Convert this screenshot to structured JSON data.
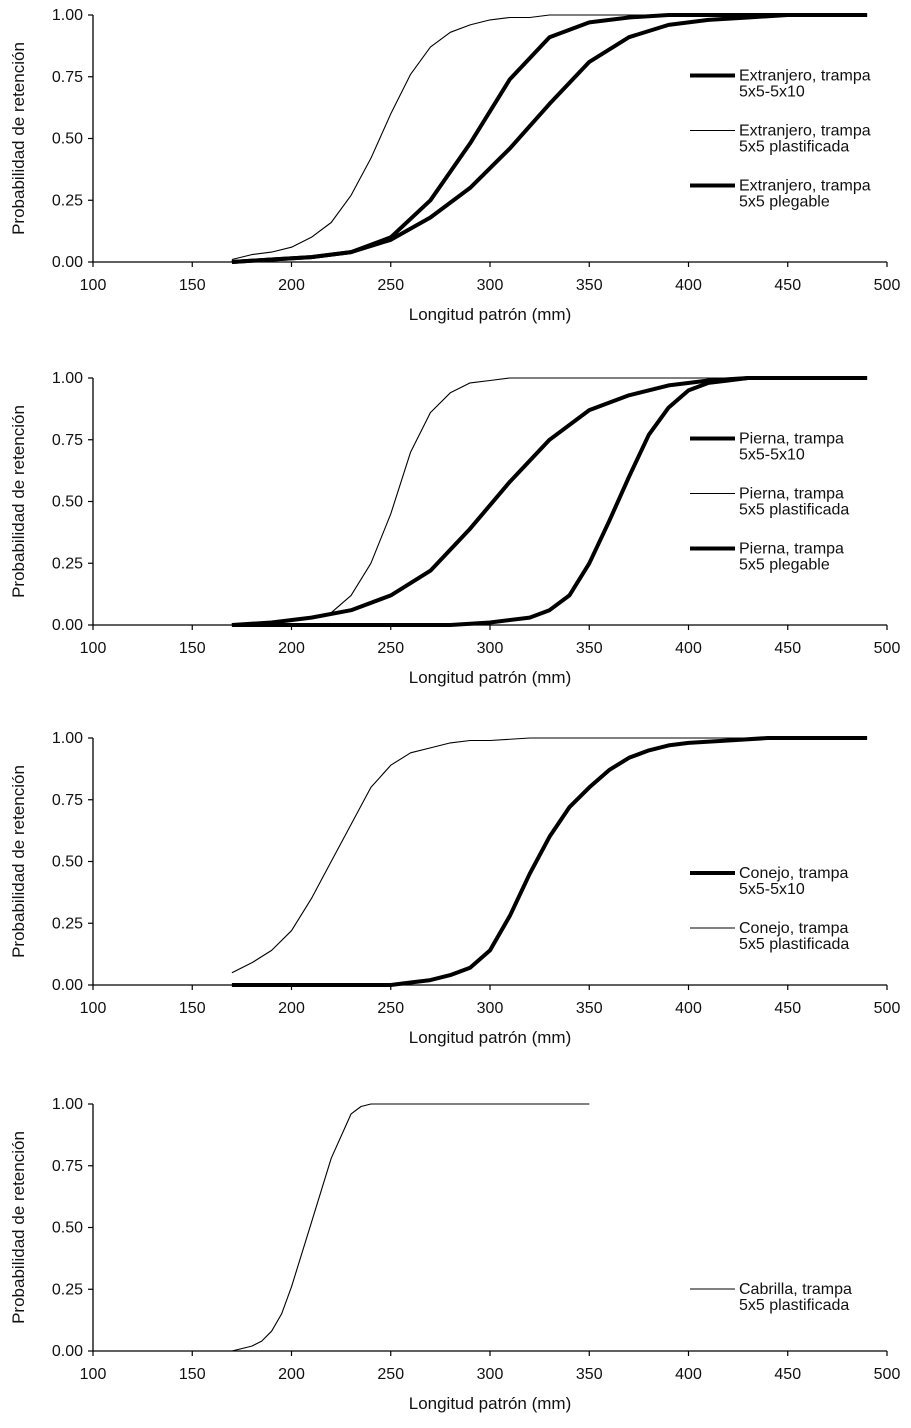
{
  "chart_data": [
    {
      "type": "line",
      "xlabel": "Longitud patrón (mm)",
      "ylabel": "Probabilidad de retención",
      "xlim": [
        100,
        500
      ],
      "ylim": [
        0,
        1
      ],
      "xticks": [
        "100",
        "150",
        "200",
        "250",
        "300",
        "350",
        "400",
        "450",
        "500"
      ],
      "yticks": [
        "0.00",
        "0.25",
        "0.50",
        "0.75",
        "1.00"
      ],
      "grid": false,
      "legend_position": "right",
      "series": [
        {
          "name": "Extranjero, trampa 5x5-5x10",
          "style": "thick",
          "x": [
            170,
            190,
            210,
            230,
            250,
            270,
            290,
            310,
            330,
            350,
            370,
            390,
            410,
            430,
            450,
            470,
            490
          ],
          "y": [
            0.0,
            0.01,
            0.02,
            0.04,
            0.09,
            0.18,
            0.3,
            0.46,
            0.64,
            0.81,
            0.91,
            0.96,
            0.98,
            0.99,
            1.0,
            1.0,
            1.0
          ]
        },
        {
          "name": "Extranjero, trampa 5x5 plastificada",
          "style": "thin",
          "x": [
            170,
            180,
            190,
            200,
            210,
            220,
            230,
            240,
            250,
            260,
            270,
            280,
            290,
            300,
            310,
            320,
            330,
            340,
            350,
            370,
            390,
            410,
            430,
            450,
            470,
            490
          ],
          "y": [
            0.01,
            0.03,
            0.04,
            0.06,
            0.1,
            0.16,
            0.27,
            0.42,
            0.6,
            0.76,
            0.87,
            0.93,
            0.96,
            0.98,
            0.99,
            0.99,
            1.0,
            1.0,
            1.0,
            1.0,
            1.0,
            1.0,
            1.0,
            1.0,
            1.0,
            1.0
          ]
        },
        {
          "name": "Extranjero, trampa 5x5 plegable",
          "style": "thick",
          "x": [
            170,
            190,
            210,
            230,
            250,
            270,
            290,
            310,
            330,
            350,
            370,
            390,
            410,
            430,
            450,
            470,
            490
          ],
          "y": [
            0.0,
            0.01,
            0.02,
            0.04,
            0.1,
            0.25,
            0.48,
            0.74,
            0.91,
            0.97,
            0.99,
            1.0,
            1.0,
            1.0,
            1.0,
            1.0,
            1.0
          ]
        }
      ]
    },
    {
      "type": "line",
      "xlabel": "Longitud patrón (mm)",
      "ylabel": "Probabilidad de retención",
      "xlim": [
        100,
        500
      ],
      "ylim": [
        0,
        1
      ],
      "xticks": [
        "100",
        "150",
        "200",
        "250",
        "300",
        "350",
        "400",
        "450",
        "500"
      ],
      "yticks": [
        "0.00",
        "0.25",
        "0.50",
        "0.75",
        "1.00"
      ],
      "grid": false,
      "legend_position": "right",
      "series": [
        {
          "name": "Pierna, trampa 5x5-5x10",
          "style": "thick",
          "x": [
            170,
            200,
            250,
            280,
            300,
            320,
            330,
            340,
            350,
            360,
            370,
            380,
            390,
            400,
            410,
            420,
            430,
            450,
            470,
            490
          ],
          "y": [
            0.0,
            0.0,
            0.0,
            0.0,
            0.01,
            0.03,
            0.06,
            0.12,
            0.25,
            0.42,
            0.6,
            0.77,
            0.88,
            0.95,
            0.98,
            0.99,
            1.0,
            1.0,
            1.0,
            1.0
          ]
        },
        {
          "name": "Pierna, trampa 5x5 plastificada",
          "style": "thin",
          "x": [
            170,
            190,
            210,
            220,
            230,
            240,
            250,
            260,
            270,
            280,
            290,
            300,
            310,
            320,
            340,
            360,
            380,
            400,
            420,
            440,
            460,
            490
          ],
          "y": [
            0.0,
            0.01,
            0.03,
            0.05,
            0.12,
            0.25,
            0.45,
            0.7,
            0.86,
            0.94,
            0.98,
            0.99,
            1.0,
            1.0,
            1.0,
            1.0,
            1.0,
            1.0,
            1.0,
            1.0,
            1.0,
            1.0
          ]
        },
        {
          "name": "Pierna, trampa 5x5 plegable",
          "style": "thick",
          "x": [
            170,
            190,
            210,
            230,
            250,
            270,
            290,
            310,
            330,
            350,
            370,
            390,
            410,
            430,
            450,
            470,
            490
          ],
          "y": [
            0.0,
            0.01,
            0.03,
            0.06,
            0.12,
            0.22,
            0.39,
            0.58,
            0.75,
            0.87,
            0.93,
            0.97,
            0.99,
            1.0,
            1.0,
            1.0,
            1.0
          ]
        }
      ]
    },
    {
      "type": "line",
      "xlabel": "Longitud patrón (mm)",
      "ylabel": "Probabilidad de retención",
      "xlim": [
        100,
        500
      ],
      "ylim": [
        0,
        1
      ],
      "xticks": [
        "100",
        "150",
        "200",
        "250",
        "300",
        "350",
        "400",
        "450",
        "500"
      ],
      "yticks": [
        "0.00",
        "0.25",
        "0.50",
        "0.75",
        "1.00"
      ],
      "grid": false,
      "legend_position": "right",
      "series": [
        {
          "name": "Conejo, trampa 5x5-5x10",
          "style": "thick",
          "x": [
            170,
            220,
            250,
            260,
            270,
            280,
            290,
            300,
            310,
            320,
            330,
            340,
            350,
            360,
            370,
            380,
            390,
            400,
            420,
            440,
            460,
            490
          ],
          "y": [
            0.0,
            0.0,
            0.0,
            0.01,
            0.02,
            0.04,
            0.07,
            0.14,
            0.28,
            0.45,
            0.6,
            0.72,
            0.8,
            0.87,
            0.92,
            0.95,
            0.97,
            0.98,
            0.99,
            1.0,
            1.0,
            1.0
          ]
        },
        {
          "name": "Conejo, trampa 5x5 plastificada",
          "style": "thin",
          "x": [
            170,
            180,
            190,
            200,
            210,
            220,
            230,
            240,
            250,
            260,
            270,
            280,
            290,
            300,
            320,
            340,
            360,
            400,
            440,
            490
          ],
          "y": [
            0.05,
            0.09,
            0.14,
            0.22,
            0.35,
            0.5,
            0.65,
            0.8,
            0.89,
            0.94,
            0.96,
            0.98,
            0.99,
            0.99,
            1.0,
            1.0,
            1.0,
            1.0,
            1.0,
            1.0
          ]
        }
      ]
    },
    {
      "type": "line",
      "xlabel": "Longitud patrón (mm)",
      "ylabel": "Probabilidad de retención",
      "xlim": [
        100,
        500
      ],
      "ylim": [
        0,
        1
      ],
      "xticks": [
        "100",
        "150",
        "200",
        "250",
        "300",
        "350",
        "400",
        "450",
        "500"
      ],
      "yticks": [
        "0.00",
        "0.25",
        "0.50",
        "0.75",
        "1.00"
      ],
      "grid": false,
      "legend_position": "right",
      "series": [
        {
          "name": "Cabrilla, trampa 5x5 plastificada",
          "style": "thin",
          "x": [
            170,
            180,
            185,
            190,
            195,
            200,
            210,
            220,
            230,
            235,
            240,
            250,
            270,
            300,
            350
          ],
          "y": [
            0.0,
            0.02,
            0.04,
            0.08,
            0.15,
            0.26,
            0.52,
            0.78,
            0.96,
            0.99,
            1.0,
            1.0,
            1.0,
            1.0,
            1.0
          ]
        }
      ]
    }
  ]
}
